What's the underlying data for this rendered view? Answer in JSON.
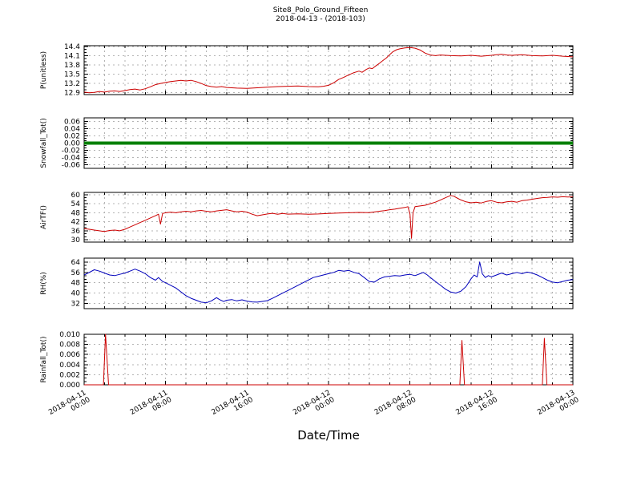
{
  "title": {
    "line1": "Site8_Polo_Ground_Fifteen",
    "line2": "2018-04-13 - (2018-103)"
  },
  "x_axis": {
    "label": "Date/Time",
    "range_hours": [
      0,
      48
    ],
    "grid_step_hours": 2,
    "major_step_hours": 8,
    "ticks": [
      {
        "hour": 0,
        "date": "2018-04-11",
        "time": "00:00"
      },
      {
        "hour": 8,
        "date": "2018-04-11",
        "time": "08:00"
      },
      {
        "hour": 16,
        "date": "2018-04-11",
        "time": "16:00"
      },
      {
        "hour": 24,
        "date": "2018-04-12",
        "time": "00:00"
      },
      {
        "hour": 32,
        "date": "2018-04-12",
        "time": "08:00"
      },
      {
        "hour": 40,
        "date": "2018-04-12",
        "time": "16:00"
      },
      {
        "hour": 48,
        "date": "2018-04-13",
        "time": "00:00"
      }
    ]
  },
  "colors": {
    "red": "#cc0000",
    "green": "#008000",
    "blue": "#0000bb",
    "grid": "#b3b3b3",
    "axis": "#000000"
  },
  "chart_data": [
    {
      "id": "p-unitless",
      "type": "line",
      "ylabel": "P(unitless)",
      "color_key": "red",
      "line_width": 1,
      "ylim": [
        12.84,
        14.42
      ],
      "ytick_values": [
        12.9,
        13.2,
        13.5,
        13.8,
        14.1,
        14.4
      ],
      "ytick_labels": [
        "12.9",
        "13.2",
        "13.5",
        "13.8",
        "14.1",
        "14.4"
      ],
      "points": [
        [
          0,
          12.92
        ],
        [
          0.5,
          12.9
        ],
        [
          1,
          12.91
        ],
        [
          1.5,
          12.94
        ],
        [
          2,
          12.92
        ],
        [
          2.5,
          12.95
        ],
        [
          3,
          12.96
        ],
        [
          3.5,
          12.94
        ],
        [
          4,
          12.97
        ],
        [
          4.5,
          13.0
        ],
        [
          5,
          13.02
        ],
        [
          5.5,
          12.99
        ],
        [
          6,
          13.03
        ],
        [
          6.5,
          13.09
        ],
        [
          7,
          13.16
        ],
        [
          7.5,
          13.2
        ],
        [
          8,
          13.23
        ],
        [
          8.5,
          13.26
        ],
        [
          9,
          13.28
        ],
        [
          9.5,
          13.3
        ],
        [
          10,
          13.28
        ],
        [
          10.5,
          13.3
        ],
        [
          11,
          13.26
        ],
        [
          11.5,
          13.2
        ],
        [
          12,
          13.13
        ],
        [
          12.5,
          13.1
        ],
        [
          13,
          13.08
        ],
        [
          13.5,
          13.1
        ],
        [
          14,
          13.07
        ],
        [
          15,
          13.05
        ],
        [
          16,
          13.04
        ],
        [
          17,
          13.06
        ],
        [
          18,
          13.08
        ],
        [
          19,
          13.1
        ],
        [
          20,
          13.11
        ],
        [
          21,
          13.12
        ],
        [
          22,
          13.1
        ],
        [
          23,
          13.09
        ],
        [
          23.5,
          13.11
        ],
        [
          24,
          13.14
        ],
        [
          24.5,
          13.22
        ],
        [
          25,
          13.33
        ],
        [
          25.5,
          13.4
        ],
        [
          26,
          13.48
        ],
        [
          26.5,
          13.55
        ],
        [
          27,
          13.6
        ],
        [
          27.3,
          13.56
        ],
        [
          27.7,
          13.65
        ],
        [
          28,
          13.7
        ],
        [
          28.3,
          13.68
        ],
        [
          28.7,
          13.78
        ],
        [
          29,
          13.85
        ],
        [
          29.3,
          13.93
        ],
        [
          29.7,
          14.03
        ],
        [
          30,
          14.13
        ],
        [
          30.3,
          14.22
        ],
        [
          30.7,
          14.29
        ],
        [
          31,
          14.32
        ],
        [
          31.5,
          14.35
        ],
        [
          32,
          14.36
        ],
        [
          32.5,
          14.34
        ],
        [
          33,
          14.28
        ],
        [
          33.5,
          14.18
        ],
        [
          34,
          14.12
        ],
        [
          34.5,
          14.1
        ],
        [
          35,
          14.12
        ],
        [
          36,
          14.1
        ],
        [
          37,
          14.09
        ],
        [
          38,
          14.11
        ],
        [
          39,
          14.08
        ],
        [
          40,
          14.11
        ],
        [
          40.5,
          14.13
        ],
        [
          41,
          14.14
        ],
        [
          41.5,
          14.12
        ],
        [
          42,
          14.11
        ],
        [
          43,
          14.13
        ],
        [
          44,
          14.1
        ],
        [
          45,
          14.09
        ],
        [
          46,
          14.11
        ],
        [
          47,
          14.08
        ],
        [
          48,
          14.06
        ]
      ]
    },
    {
      "id": "snowfall-tot",
      "type": "line",
      "ylabel": "Snowfall_Tot()",
      "color_key": "green",
      "line_width": 4,
      "ylim": [
        -0.07,
        0.07
      ],
      "ytick_values": [
        -0.06,
        -0.04,
        -0.02,
        0,
        0.02,
        0.04,
        0.06
      ],
      "ytick_labels": [
        "-0.06",
        "-0.04",
        "-0.02",
        "0.00",
        "0.02",
        "0.04",
        "0.06"
      ],
      "points": [
        [
          0,
          0
        ],
        [
          48,
          0
        ]
      ]
    },
    {
      "id": "airtf",
      "type": "line",
      "ylabel": "AirTF()",
      "color_key": "red",
      "line_width": 1,
      "ylim": [
        28.5,
        61.5
      ],
      "ytick_values": [
        30,
        36,
        42,
        48,
        54,
        60
      ],
      "ytick_labels": [
        "30",
        "36",
        "42",
        "48",
        "54",
        "60"
      ],
      "points": [
        [
          0,
          37.5
        ],
        [
          0.5,
          37
        ],
        [
          1,
          36.5
        ],
        [
          1.5,
          36
        ],
        [
          2,
          35.5
        ],
        [
          2.5,
          36.2
        ],
        [
          3,
          36.5
        ],
        [
          3.5,
          36
        ],
        [
          4,
          37
        ],
        [
          4.5,
          38.5
        ],
        [
          5,
          40
        ],
        [
          5.5,
          41.5
        ],
        [
          6,
          43
        ],
        [
          6.5,
          44.5
        ],
        [
          7,
          46
        ],
        [
          7.3,
          47
        ],
        [
          7.5,
          40.5
        ],
        [
          7.7,
          47.5
        ],
        [
          8,
          48
        ],
        [
          8.5,
          48.4
        ],
        [
          9,
          48
        ],
        [
          9.5,
          48.6
        ],
        [
          10,
          49
        ],
        [
          10.5,
          48.6
        ],
        [
          11,
          49.2
        ],
        [
          11.5,
          49.5
        ],
        [
          12,
          49
        ],
        [
          12.5,
          48.6
        ],
        [
          13,
          49.2
        ],
        [
          13.5,
          49.6
        ],
        [
          14,
          50
        ],
        [
          14.5,
          49.2
        ],
        [
          15,
          48.6
        ],
        [
          15.5,
          49
        ],
        [
          16,
          48.4
        ],
        [
          16.5,
          47
        ],
        [
          17,
          46
        ],
        [
          17.5,
          46.6
        ],
        [
          18,
          47.2
        ],
        [
          18.5,
          47.6
        ],
        [
          19,
          47
        ],
        [
          19.5,
          47.5
        ],
        [
          20,
          47.1
        ],
        [
          21,
          47.3
        ],
        [
          22,
          47
        ],
        [
          23,
          47.2
        ],
        [
          24,
          47.5
        ],
        [
          25,
          47.8
        ],
        [
          26,
          48
        ],
        [
          27,
          48.2
        ],
        [
          28,
          48.1
        ],
        [
          28.5,
          48.5
        ],
        [
          29,
          49
        ],
        [
          29.5,
          49.4
        ],
        [
          30,
          50
        ],
        [
          30.5,
          50.4
        ],
        [
          31,
          51
        ],
        [
          31.5,
          51.5
        ],
        [
          31.8,
          52
        ],
        [
          32,
          47
        ],
        [
          32.15,
          31
        ],
        [
          32.3,
          48
        ],
        [
          32.5,
          52
        ],
        [
          33,
          52.5
        ],
        [
          33.5,
          53
        ],
        [
          34,
          54
        ],
        [
          34.5,
          55
        ],
        [
          35,
          56.5
        ],
        [
          35.5,
          58
        ],
        [
          36,
          59.5
        ],
        [
          36.3,
          59
        ],
        [
          36.7,
          57.5
        ],
        [
          37,
          56.5
        ],
        [
          37.5,
          55.2
        ],
        [
          38,
          54.6
        ],
        [
          38.5,
          55
        ],
        [
          39,
          54.5
        ],
        [
          39.5,
          55.5
        ],
        [
          40,
          56
        ],
        [
          40.5,
          55
        ],
        [
          41,
          54.6
        ],
        [
          41.5,
          55.2
        ],
        [
          42,
          55.6
        ],
        [
          42.5,
          55
        ],
        [
          43,
          56
        ],
        [
          43.5,
          56.4
        ],
        [
          44,
          57
        ],
        [
          44.5,
          57.5
        ],
        [
          45,
          58
        ],
        [
          45.5,
          58.2
        ],
        [
          46,
          58.5
        ],
        [
          46.5,
          58.3
        ],
        [
          47,
          58.6
        ],
        [
          47.5,
          58.4
        ],
        [
          48,
          58.5
        ]
      ]
    },
    {
      "id": "rh-percent",
      "type": "line",
      "ylabel": "RH(%)",
      "color_key": "blue",
      "line_width": 1,
      "ylim": [
        28,
        67
      ],
      "ytick_values": [
        32,
        40,
        48,
        56,
        64
      ],
      "ytick_labels": [
        "32",
        "40",
        "48",
        "56",
        "64"
      ],
      "points": [
        [
          0,
          54
        ],
        [
          0.5,
          56
        ],
        [
          1,
          58
        ],
        [
          1.5,
          57
        ],
        [
          2,
          55.5
        ],
        [
          2.5,
          54
        ],
        [
          3,
          53.5
        ],
        [
          3.5,
          54.5
        ],
        [
          4,
          55.5
        ],
        [
          4.5,
          57
        ],
        [
          5,
          58.5
        ],
        [
          5.5,
          57
        ],
        [
          6,
          55
        ],
        [
          6.5,
          52
        ],
        [
          7,
          50
        ],
        [
          7.3,
          52
        ],
        [
          7.7,
          49
        ],
        [
          8,
          48
        ],
        [
          8.5,
          46
        ],
        [
          9,
          44
        ],
        [
          9.5,
          41
        ],
        [
          10,
          38
        ],
        [
          10.5,
          36
        ],
        [
          11,
          34.5
        ],
        [
          11.5,
          33
        ],
        [
          12,
          32.5
        ],
        [
          12.5,
          34
        ],
        [
          13,
          36.5
        ],
        [
          13.3,
          35
        ],
        [
          13.7,
          33.5
        ],
        [
          14,
          34.5
        ],
        [
          14.5,
          35
        ],
        [
          15,
          34
        ],
        [
          15.5,
          34.8
        ],
        [
          16,
          33.8
        ],
        [
          16.5,
          33.2
        ],
        [
          17,
          33
        ],
        [
          17.5,
          33.6
        ],
        [
          18,
          34.2
        ],
        [
          18.5,
          36
        ],
        [
          19,
          38
        ],
        [
          19.5,
          40
        ],
        [
          20,
          42
        ],
        [
          20.5,
          44
        ],
        [
          21,
          46
        ],
        [
          21.5,
          48
        ],
        [
          22,
          50
        ],
        [
          22.5,
          52
        ],
        [
          23,
          53
        ],
        [
          23.5,
          54
        ],
        [
          24,
          55
        ],
        [
          24.5,
          56
        ],
        [
          25,
          57.5
        ],
        [
          25.5,
          57
        ],
        [
          26,
          57.5
        ],
        [
          26.5,
          56
        ],
        [
          27,
          55
        ],
        [
          27.5,
          52
        ],
        [
          28,
          49
        ],
        [
          28.5,
          48.5
        ],
        [
          29,
          51
        ],
        [
          29.5,
          52.5
        ],
        [
          30,
          53
        ],
        [
          30.5,
          53.5
        ],
        [
          31,
          53.2
        ],
        [
          31.5,
          54
        ],
        [
          32,
          54.5
        ],
        [
          32.5,
          53.5
        ],
        [
          33,
          55
        ],
        [
          33.3,
          56
        ],
        [
          33.7,
          54
        ],
        [
          34,
          52
        ],
        [
          34.5,
          49
        ],
        [
          35,
          46
        ],
        [
          35.5,
          43
        ],
        [
          36,
          40.8
        ],
        [
          36.5,
          40
        ],
        [
          37,
          41.5
        ],
        [
          37.5,
          45
        ],
        [
          38,
          51
        ],
        [
          38.3,
          54
        ],
        [
          38.6,
          52.5
        ],
        [
          38.85,
          64
        ],
        [
          39.1,
          55
        ],
        [
          39.4,
          52
        ],
        [
          39.7,
          53.5
        ],
        [
          40,
          52.5
        ],
        [
          40.5,
          54
        ],
        [
          41,
          55.5
        ],
        [
          41.5,
          54
        ],
        [
          42,
          55
        ],
        [
          42.5,
          56
        ],
        [
          43,
          55
        ],
        [
          43.5,
          56.2
        ],
        [
          44,
          55.5
        ],
        [
          44.5,
          54
        ],
        [
          45,
          52
        ],
        [
          45.5,
          50
        ],
        [
          46,
          48.5
        ],
        [
          46.5,
          48
        ],
        [
          47,
          49
        ],
        [
          47.5,
          50
        ],
        [
          48,
          50.5
        ]
      ]
    },
    {
      "id": "rainfall-tot",
      "type": "line",
      "ylabel": "Rainfall_Tot()",
      "color_key": "red",
      "line_width": 1,
      "ylim": [
        0,
        0.01
      ],
      "ytick_values": [
        0,
        0.002,
        0.004,
        0.006,
        0.008,
        0.01
      ],
      "ytick_labels": [
        "0.000",
        "0.002",
        "0.004",
        "0.006",
        "0.008",
        "0.010"
      ],
      "points": [
        [
          0,
          0
        ],
        [
          1.9,
          0
        ],
        [
          2.1,
          0.01
        ],
        [
          2.4,
          0
        ],
        [
          36.9,
          0
        ],
        [
          37.1,
          0.0088
        ],
        [
          37.35,
          0
        ],
        [
          45,
          0
        ],
        [
          45.2,
          0.0092
        ],
        [
          45.45,
          0
        ],
        [
          48,
          0
        ]
      ]
    }
  ]
}
